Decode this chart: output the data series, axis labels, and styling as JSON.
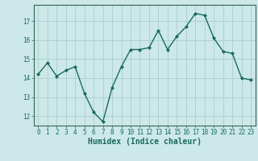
{
  "x": [
    0,
    1,
    2,
    3,
    4,
    5,
    6,
    7,
    8,
    9,
    10,
    11,
    12,
    13,
    14,
    15,
    16,
    17,
    18,
    19,
    20,
    21,
    22,
    23
  ],
  "y": [
    14.2,
    14.8,
    14.1,
    14.4,
    14.6,
    13.2,
    12.2,
    11.7,
    13.5,
    14.6,
    15.5,
    15.5,
    15.6,
    16.5,
    15.5,
    16.2,
    16.7,
    17.4,
    17.3,
    16.1,
    15.4,
    15.3,
    14.0,
    13.9
  ],
  "line_color": "#1a6b5a",
  "marker": "D",
  "markersize": 2.0,
  "linewidth": 1.0,
  "bg_color": "#cce8e8",
  "grid_color": "#aacece",
  "xlabel": "Humidex (Indice chaleur)",
  "xlabel_fontsize": 7,
  "xtick_fontsize": 5.5,
  "ytick_fontsize": 5.5,
  "ylim": [
    11.5,
    17.85
  ],
  "yticks": [
    12,
    13,
    14,
    15,
    16,
    17
  ],
  "xlim": [
    -0.5,
    23.5
  ],
  "xticks": [
    0,
    1,
    2,
    3,
    4,
    5,
    6,
    7,
    8,
    9,
    10,
    11,
    12,
    13,
    14,
    15,
    16,
    17,
    18,
    19,
    20,
    21,
    22,
    23
  ]
}
